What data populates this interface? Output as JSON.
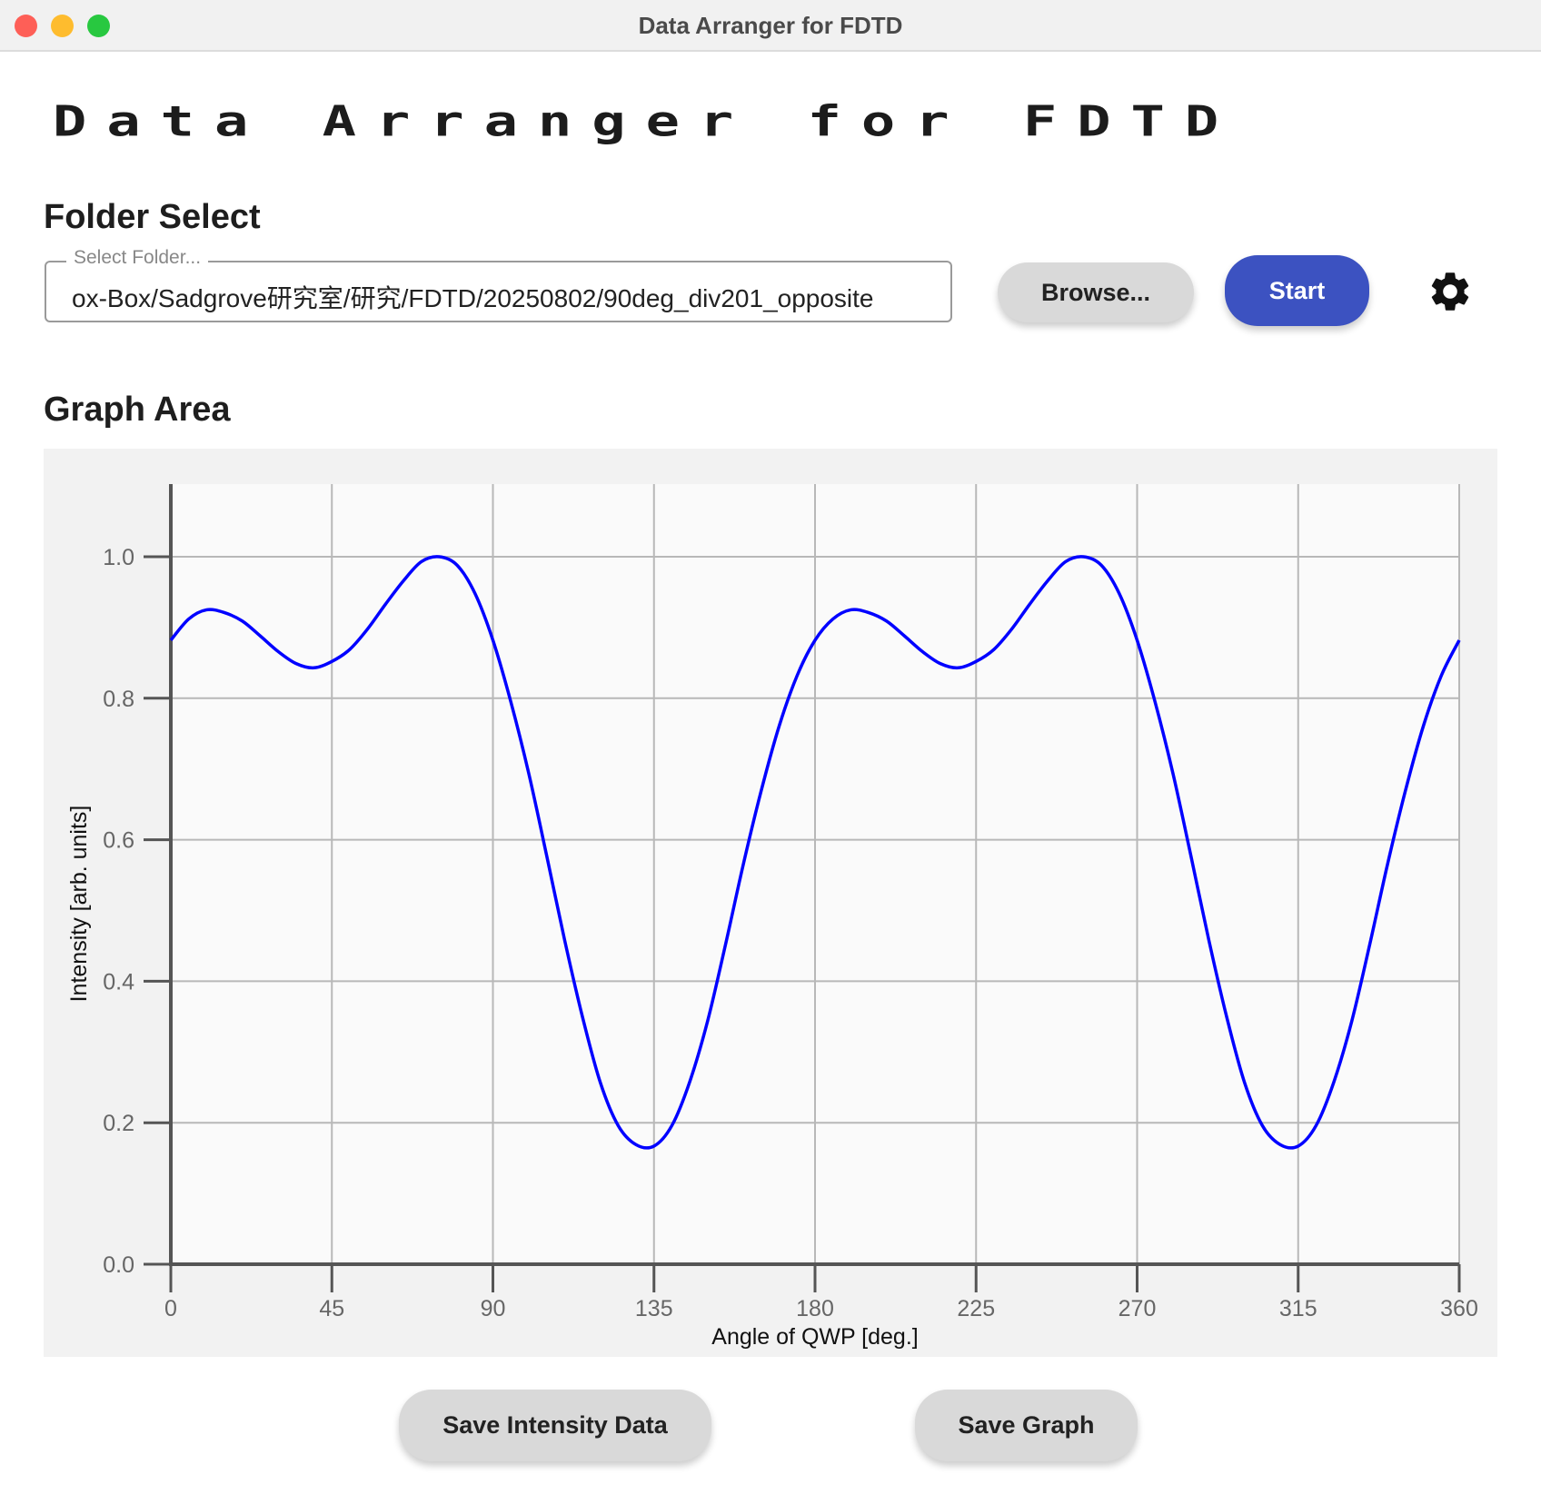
{
  "window": {
    "title": "Data Arranger for FDTD",
    "traffic_lights": {
      "close": "#fe5f57",
      "minimize": "#febc2e",
      "maximize": "#28c840"
    }
  },
  "app_title": "Data Arranger for FDTD",
  "folder_section": {
    "heading": "Folder  Select",
    "field_label": "Select Folder...",
    "field_value": "ox-Box/Sadgrove研究室/研究/FDTD/20250802/90deg_div201_opposite",
    "browse_label": "Browse...",
    "start_label": "Start",
    "settings_icon": "gear-icon",
    "accent": "#3c52c1"
  },
  "graph_section": {
    "heading": "Graph Area"
  },
  "chart_data": {
    "type": "line",
    "xlabel": "Angle of QWP [deg.]",
    "ylabel": "Intensity [arb. units]",
    "xlim": [
      0,
      360
    ],
    "ylim": [
      0,
      1.1
    ],
    "xticks": [
      "0",
      "45",
      "90",
      "135",
      "180",
      "225",
      "270",
      "315",
      "360"
    ],
    "yticks": [
      "0.0",
      "0.2",
      "0.4",
      "0.6",
      "0.8",
      "1.0"
    ],
    "grid": true,
    "line_color": "#0000ff",
    "x_step": 5,
    "x": [
      0,
      5,
      10,
      15,
      20,
      25,
      30,
      35,
      40,
      45,
      50,
      55,
      60,
      65,
      70,
      75,
      80,
      85,
      90,
      95,
      100,
      105,
      110,
      115,
      120,
      125,
      130,
      135,
      140,
      145,
      150,
      155,
      160,
      165,
      170,
      175,
      180,
      185,
      190,
      195,
      200,
      205,
      210,
      215,
      220,
      225,
      230,
      235,
      240,
      245,
      250,
      255,
      260,
      265,
      270,
      275,
      280,
      285,
      290,
      295,
      300,
      305,
      310,
      315,
      320,
      325,
      330,
      335,
      340,
      345,
      350,
      355,
      360
    ],
    "y": [
      0.882,
      0.912,
      0.925,
      0.921,
      0.909,
      0.888,
      0.866,
      0.849,
      0.843,
      0.852,
      0.869,
      0.898,
      0.933,
      0.966,
      0.993,
      1.0,
      0.988,
      0.948,
      0.882,
      0.795,
      0.694,
      0.578,
      0.459,
      0.35,
      0.257,
      0.196,
      0.169,
      0.167,
      0.196,
      0.258,
      0.344,
      0.452,
      0.566,
      0.67,
      0.761,
      0.832,
      0.882,
      0.912,
      0.925,
      0.921,
      0.909,
      0.888,
      0.866,
      0.849,
      0.843,
      0.852,
      0.869,
      0.898,
      0.933,
      0.966,
      0.993,
      1.0,
      0.988,
      0.948,
      0.882,
      0.795,
      0.694,
      0.578,
      0.459,
      0.35,
      0.257,
      0.196,
      0.169,
      0.167,
      0.196,
      0.258,
      0.344,
      0.452,
      0.566,
      0.67,
      0.761,
      0.832,
      0.882
    ]
  },
  "actions": {
    "save_intensity_label": "Save Intensity Data",
    "save_graph_label": "Save Graph"
  }
}
